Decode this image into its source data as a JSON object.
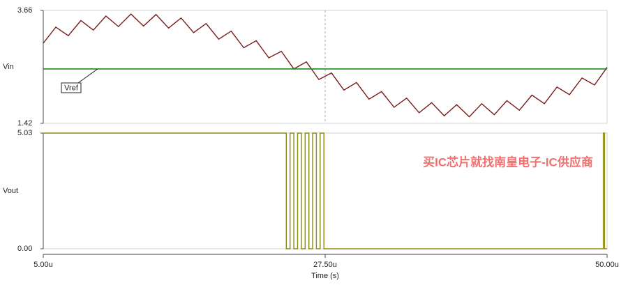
{
  "chart_data": [
    {
      "type": "line",
      "xlim": [
        5,
        50
      ],
      "ylim": [
        1.42,
        3.66
      ],
      "yticks": [
        1.42,
        3.66
      ],
      "cursor_x": 27.5,
      "series": [
        {
          "name": "Vin",
          "color": "#7a1a1a",
          "x": [
            5,
            6,
            7,
            8,
            9,
            10,
            11,
            12,
            13,
            14,
            15,
            16,
            17,
            18,
            19,
            20,
            21,
            22,
            23,
            24,
            25,
            26,
            27,
            28,
            29,
            30,
            31,
            32,
            33,
            34,
            35,
            36,
            37,
            38,
            39,
            40,
            41,
            42,
            43,
            44,
            45,
            46,
            47,
            48,
            49,
            50
          ],
          "values": [
            3.01,
            3.33,
            3.16,
            3.46,
            3.27,
            3.55,
            3.34,
            3.59,
            3.35,
            3.58,
            3.31,
            3.51,
            3.22,
            3.4,
            3.09,
            3.25,
            2.92,
            3.06,
            2.72,
            2.85,
            2.5,
            2.64,
            2.29,
            2.42,
            2.08,
            2.23,
            1.9,
            2.05,
            1.74,
            1.92,
            1.63,
            1.83,
            1.57,
            1.79,
            1.55,
            1.81,
            1.59,
            1.87,
            1.68,
            1.98,
            1.81,
            2.14,
            1.99,
            2.32,
            2.18,
            2.53
          ]
        },
        {
          "name": "Vref",
          "color": "#1f8a1f",
          "x": [
            5,
            50
          ],
          "values": [
            2.5,
            2.5
          ]
        }
      ]
    },
    {
      "type": "line",
      "xlim": [
        5,
        50
      ],
      "ylim": [
        0,
        5.03
      ],
      "yticks": [
        {
          "value": 0,
          "label": "0.00"
        },
        5.03
      ],
      "xticks": [
        {
          "value": 5,
          "label": "5.00u"
        },
        {
          "value": 27.5,
          "label": "27.50u"
        },
        {
          "value": 50,
          "label": "50.00u"
        }
      ],
      "xlabel": "Time (s)",
      "series": [
        {
          "name": "Vout",
          "color": "#8a8a10",
          "x": [
            5,
            24.4,
            24.4,
            24.7,
            24.7,
            25.0,
            25.0,
            25.3,
            25.3,
            25.6,
            25.6,
            25.9,
            25.9,
            26.2,
            26.2,
            26.5,
            26.5,
            26.8,
            26.8,
            27.1,
            27.1,
            27.4,
            27.4,
            49.7,
            49.7,
            49.8,
            49.8,
            50
          ],
          "values": [
            5.03,
            5.03,
            0,
            0,
            5.03,
            5.03,
            0,
            0,
            5.03,
            5.03,
            0,
            0,
            5.03,
            5.03,
            0,
            0,
            5.03,
            5.03,
            0,
            0,
            5.03,
            5.03,
            0,
            0,
            5.03,
            5.03,
            0,
            0
          ]
        }
      ]
    }
  ],
  "watermark": "买IC芯片就找南皇电子-IC供应商"
}
